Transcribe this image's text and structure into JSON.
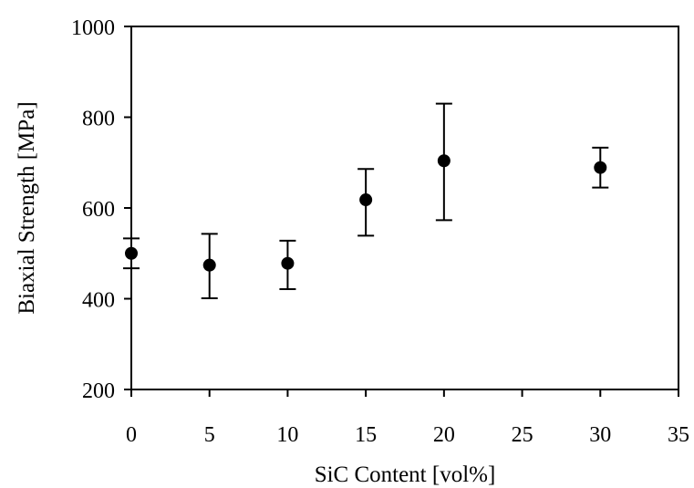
{
  "chart_data": {
    "type": "scatter",
    "title": "",
    "xlabel": "SiC Content [vol%]",
    "ylabel": "Biaxial Strength [MPa]",
    "xlim": [
      0,
      35
    ],
    "ylim": [
      200,
      1000
    ],
    "xticks": [
      0,
      5,
      10,
      15,
      20,
      25,
      30,
      35
    ],
    "yticks": [
      200,
      400,
      600,
      800,
      1000
    ],
    "grid": false,
    "legend": "none",
    "marker_color": "#000000",
    "series": [
      {
        "points": [
          {
            "x": 0,
            "y": 500,
            "err_low": 467,
            "err_high": 533
          },
          {
            "x": 5,
            "y": 474,
            "err_low": 401,
            "err_high": 543
          },
          {
            "x": 10,
            "y": 478,
            "err_low": 421,
            "err_high": 528
          },
          {
            "x": 15,
            "y": 618,
            "err_low": 539,
            "err_high": 686
          },
          {
            "x": 20,
            "y": 704,
            "err_low": 573,
            "err_high": 830
          },
          {
            "x": 30,
            "y": 689,
            "err_low": 645,
            "err_high": 733
          }
        ]
      }
    ]
  }
}
